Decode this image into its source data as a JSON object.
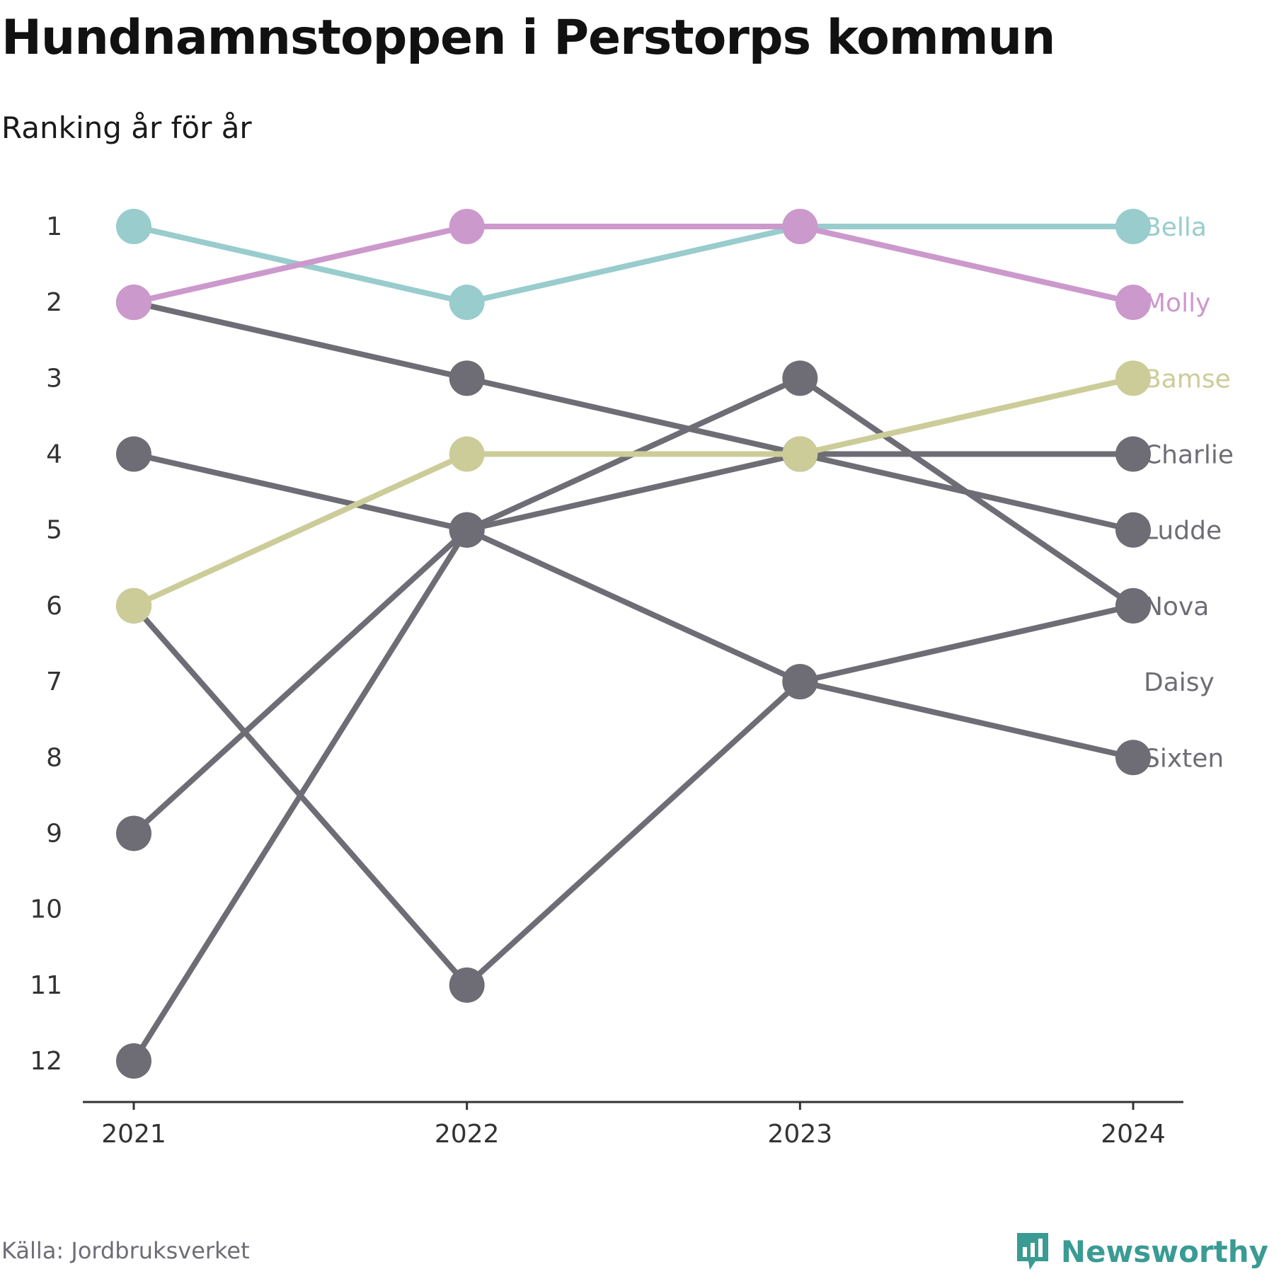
{
  "header": {
    "title": "Hundnamnstoppen i Perstorps kommun",
    "subtitle": "Ranking år för år"
  },
  "footer": {
    "source": "Källa: Jordbruksverket",
    "brand": "Newsworthy",
    "brand_icon": "bar-chart-speech-bubble-icon",
    "brand_color": "#3a9b94"
  },
  "chart_data": {
    "type": "line",
    "x": [
      "2021",
      "2022",
      "2023",
      "2024"
    ],
    "ylim": [
      1,
      12
    ],
    "y_reversed": true,
    "y_ticks": [
      1,
      2,
      3,
      4,
      5,
      6,
      7,
      8,
      9,
      10,
      11,
      12
    ],
    "grid": false,
    "legend": "direct labels at right end of lines",
    "series": [
      {
        "name": "Bella",
        "values": [
          1,
          2,
          1,
          1
        ],
        "color": "#99cccc"
      },
      {
        "name": "Molly",
        "values": [
          2,
          1,
          1,
          2
        ],
        "color": "#cc99cc"
      },
      {
        "name": "Bamse",
        "values": [
          6,
          4,
          4,
          3
        ],
        "color": "#cccc99"
      },
      {
        "name": "Charlie",
        "values": [
          2,
          3,
          4,
          4
        ],
        "color": "#6e6d75"
      },
      {
        "name": "Ludde",
        "values": [
          12,
          5,
          4,
          5
        ],
        "color": "#6e6d75"
      },
      {
        "name": "Nova",
        "values": [
          9,
          5,
          3,
          6
        ],
        "color": "#6e6d75"
      },
      {
        "name": "Daisy",
        "values": [
          6,
          11,
          7,
          6
        ],
        "color": "#6e6d75"
      },
      {
        "name": "Sixten",
        "values": [
          4,
          5,
          7,
          8
        ],
        "color": "#6e6d75"
      }
    ],
    "end_label_ranks": [
      1,
      2,
      3,
      4,
      5,
      6,
      7,
      8
    ],
    "axis_color": "#333333",
    "tick_label_color": "#333333"
  }
}
